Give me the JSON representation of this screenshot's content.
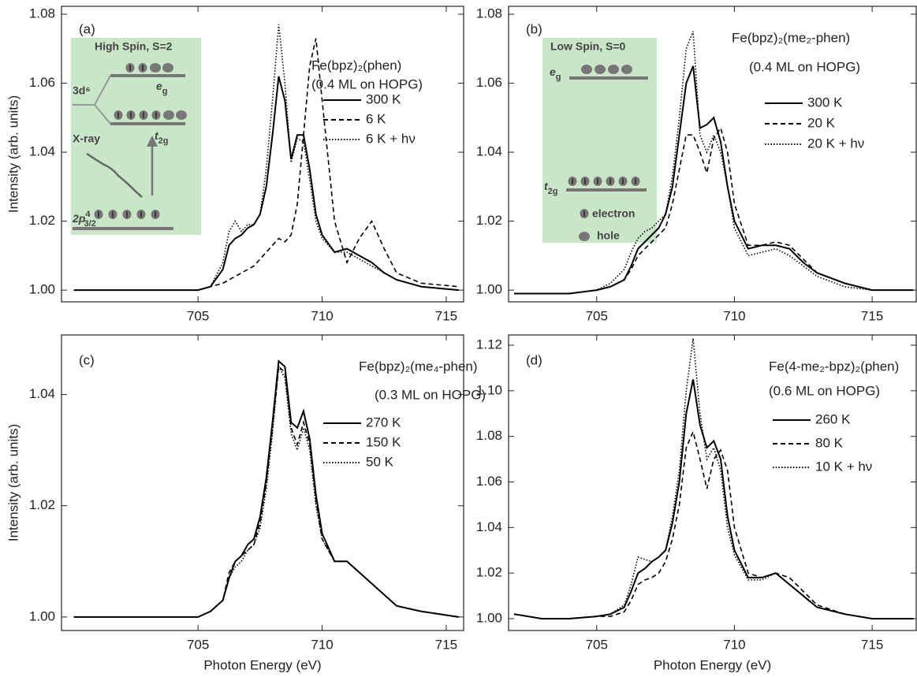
{
  "chart_data": [
    {
      "type": "line",
      "panel": "(a)",
      "title": "Fe(bpz)₂(phen)",
      "subtitle": "(0.4 ML on  HOPG)",
      "ylabel": "Intensity (arb. units)",
      "x": [
        700,
        702,
        704,
        705,
        705.5,
        706,
        706.25,
        706.5,
        706.75,
        707,
        707.25,
        707.5,
        707.75,
        708,
        708.25,
        708.5,
        708.75,
        709,
        709.25,
        709.5,
        709.75,
        710,
        710.5,
        711,
        711.5,
        712,
        712.5,
        713,
        714,
        715.5
      ],
      "xlim": [
        699.5,
        715.7
      ],
      "xticks": [
        705,
        710,
        715
      ],
      "ylim": [
        0.9966,
        1.0823
      ],
      "yticks": [
        {
          "value": 1,
          "label": "1.00"
        },
        {
          "value": 1.02,
          "label": "1.02"
        },
        {
          "value": 1.04,
          "label": "1.04"
        },
        {
          "value": 1.06,
          "label": "1.06"
        },
        {
          "value": 1.08,
          "label": "1.08"
        }
      ],
      "series": [
        {
          "name": "300 K",
          "color": "#000000",
          "dash": "solid",
          "values": [
            1.0,
            1.0,
            1.0,
            1.0,
            1.001,
            1.006,
            1.013,
            1.015,
            1.016,
            1.018,
            1.019,
            1.022,
            1.03,
            1.045,
            1.062,
            1.055,
            1.038,
            1.045,
            1.045,
            1.035,
            1.022,
            1.016,
            1.011,
            1.012,
            1.01,
            1.008,
            1.005,
            1.003,
            1.001,
            1.0
          ]
        },
        {
          "name": "6 K",
          "color": "#000000",
          "dash": "dashed",
          "values": [
            1.0,
            1.0,
            1.0,
            1.0,
            1.001,
            1.002,
            1.003,
            1.004,
            1.005,
            1.006,
            1.007,
            1.009,
            1.011,
            1.013,
            1.015,
            1.014,
            1.016,
            1.025,
            1.045,
            1.065,
            1.073,
            1.055,
            1.02,
            1.008,
            1.015,
            1.02,
            1.012,
            1.005,
            1.002,
            1.001
          ]
        },
        {
          "name": "6 K + hν",
          "color": "#000000",
          "dash": "dotted",
          "values": [
            1.0,
            1.0,
            1.0,
            1.0,
            1.001,
            1.008,
            1.017,
            1.02,
            1.017,
            1.019,
            1.019,
            1.022,
            1.035,
            1.055,
            1.077,
            1.06,
            1.037,
            1.044,
            1.043,
            1.032,
            1.02,
            1.015,
            1.011,
            1.011,
            1.009,
            1.007,
            1.005,
            1.003,
            1.001,
            1.0
          ]
        }
      ],
      "inset": {
        "title": "High Spin, S=2",
        "labels": [
          "3d⁶",
          {
            "text": "e",
            "sub": "g"
          },
          {
            "text": "t",
            "sub": "2g"
          },
          "X-ray",
          {
            "text": "2p",
            "sup": "4",
            "sub": "3/2"
          }
        ]
      }
    },
    {
      "type": "line",
      "panel": "(b)",
      "title": "Fe(bpz)₂(me₂-phen)",
      "subtitle": "(0.4 ML on HOPG)",
      "x": [
        702,
        703,
        704,
        705,
        705.5,
        706,
        706.25,
        706.5,
        706.75,
        707,
        707.25,
        707.5,
        707.75,
        708,
        708.25,
        708.5,
        708.75,
        709,
        709.25,
        709.5,
        709.75,
        710,
        710.5,
        711,
        711.5,
        712,
        712.5,
        713,
        714,
        715,
        716.5
      ],
      "xlim": [
        701.8,
        716.6
      ],
      "xticks": [
        705,
        710,
        715
      ],
      "ylim": [
        0.9966,
        1.0823
      ],
      "yticks": [
        {
          "value": 1,
          "label": "1.00"
        },
        {
          "value": 1.02,
          "label": "1.02"
        },
        {
          "value": 1.04,
          "label": "1.04"
        },
        {
          "value": 1.06,
          "label": "1.06"
        },
        {
          "value": 1.08,
          "label": "1.08"
        }
      ],
      "series": [
        {
          "name": "300 K",
          "color": "#000000",
          "dash": "solid",
          "values": [
            0.999,
            0.999,
            0.999,
            1.0,
            1.001,
            1.003,
            1.007,
            1.012,
            1.014,
            1.016,
            1.018,
            1.022,
            1.03,
            1.045,
            1.06,
            1.065,
            1.047,
            1.048,
            1.05,
            1.043,
            1.03,
            1.02,
            1.012,
            1.013,
            1.013,
            1.012,
            1.008,
            1.005,
            1.002,
            1.0,
            1.0
          ]
        },
        {
          "name": "20 K",
          "color": "#000000",
          "dash": "dashed",
          "values": [
            0.999,
            0.999,
            0.999,
            1.0,
            1.001,
            1.003,
            1.006,
            1.01,
            1.012,
            1.014,
            1.016,
            1.018,
            1.025,
            1.035,
            1.045,
            1.045,
            1.04,
            1.034,
            1.044,
            1.047,
            1.04,
            1.025,
            1.013,
            1.013,
            1.014,
            1.013,
            1.009,
            1.005,
            1.002,
            1.0,
            1.0
          ]
        },
        {
          "name": "20 K + hν",
          "color": "#000000",
          "dash": "dotted",
          "values": [
            0.999,
            0.999,
            0.999,
            1.0,
            1.002,
            1.006,
            1.011,
            1.015,
            1.017,
            1.018,
            1.02,
            1.022,
            1.033,
            1.05,
            1.07,
            1.075,
            1.045,
            1.04,
            1.045,
            1.04,
            1.03,
            1.018,
            1.01,
            1.011,
            1.012,
            1.01,
            1.007,
            1.004,
            1.001,
            1.0,
            1.0
          ]
        }
      ],
      "inset": {
        "title": "Low Spin, S=0",
        "labels": [
          {
            "text": "e",
            "sub": "g"
          },
          {
            "text": "t",
            "sub": "2g"
          },
          "electron",
          "hole"
        ]
      }
    },
    {
      "type": "line",
      "panel": "(c)",
      "title": "Fe(bpz)₂(me₄-phen)",
      "subtitle": "(0.3 ML on HOPG)",
      "ylabel": "Intensity (arb. units)",
      "xlabel": "Photon Energy (eV)",
      "x": [
        700,
        702,
        704,
        705,
        705.5,
        706,
        706.25,
        706.5,
        706.75,
        707,
        707.25,
        707.5,
        707.75,
        708,
        708.25,
        708.5,
        708.75,
        709,
        709.25,
        709.5,
        709.75,
        710,
        710.5,
        711,
        711.5,
        712,
        712.5,
        713,
        714,
        715.5
      ],
      "xlim": [
        699.5,
        715.7
      ],
      "xticks": [
        705,
        710,
        715
      ],
      "ylim": [
        0.99757,
        1.0507
      ],
      "yticks": [
        {
          "value": 1,
          "label": "1.00"
        },
        {
          "value": 1.02,
          "label": "1.02"
        },
        {
          "value": 1.04,
          "label": "1.04"
        }
      ],
      "series": [
        {
          "name": "270 K",
          "color": "#000000",
          "dash": "solid",
          "values": [
            1.0,
            1.0,
            1.0,
            1.0,
            1.001,
            1.003,
            1.007,
            1.01,
            1.011,
            1.013,
            1.014,
            1.018,
            1.025,
            1.035,
            1.046,
            1.045,
            1.035,
            1.034,
            1.037,
            1.032,
            1.022,
            1.015,
            1.01,
            1.01,
            1.008,
            1.006,
            1.004,
            1.002,
            1.001,
            1.0
          ]
        },
        {
          "name": "150 K",
          "color": "#000000",
          "dash": "dashed",
          "values": [
            1.0,
            1.0,
            1.0,
            1.0,
            1.001,
            1.003,
            1.008,
            1.01,
            1.011,
            1.012,
            1.013,
            1.017,
            1.024,
            1.034,
            1.045,
            1.044,
            1.034,
            1.031,
            1.035,
            1.031,
            1.021,
            1.014,
            1.01,
            1.01,
            1.008,
            1.006,
            1.004,
            1.002,
            1.001,
            1.0
          ]
        },
        {
          "name": "50 K",
          "color": "#000000",
          "dash": "dotted",
          "values": [
            1.0,
            1.0,
            1.0,
            1.0,
            1.001,
            1.003,
            1.007,
            1.009,
            1.01,
            1.012,
            1.013,
            1.016,
            1.023,
            1.033,
            1.045,
            1.043,
            1.033,
            1.03,
            1.034,
            1.03,
            1.02,
            1.014,
            1.01,
            1.01,
            1.008,
            1.006,
            1.004,
            1.002,
            1.001,
            1.0
          ]
        }
      ]
    },
    {
      "type": "line",
      "panel": "(d)",
      "title": "Fe(4-me₂-bpz)₂(phen)",
      "subtitle": "(0.6 ML on  HOPG)",
      "xlabel": "Photon Energy (eV)",
      "x": [
        702,
        703,
        704,
        705,
        705.5,
        706,
        706.25,
        706.5,
        706.75,
        707,
        707.25,
        707.5,
        707.75,
        708,
        708.25,
        708.5,
        708.75,
        709,
        709.25,
        709.5,
        709.75,
        710,
        710.5,
        711,
        711.5,
        712,
        712.5,
        713,
        714,
        715,
        716.5
      ],
      "xlim": [
        701.8,
        716.6
      ],
      "xticks": [
        705,
        710,
        715
      ],
      "ylim": [
        0.9948,
        1.1245
      ],
      "yticks": [
        {
          "value": 1,
          "label": "1.00"
        },
        {
          "value": 1.02,
          "label": "1.02"
        },
        {
          "value": 1.04,
          "label": "1.04"
        },
        {
          "value": 1.06,
          "label": "1.06"
        },
        {
          "value": 1.08,
          "label": "1.08"
        },
        {
          "value": 1.1,
          "label": "1.10"
        },
        {
          "value": 1.12,
          "label": "1.12"
        }
      ],
      "series": [
        {
          "name": "260 K",
          "color": "#000000",
          "dash": "solid",
          "values": [
            1.002,
            1.0,
            1.0,
            1.001,
            1.002,
            1.005,
            1.012,
            1.02,
            1.022,
            1.025,
            1.027,
            1.03,
            1.042,
            1.06,
            1.09,
            1.105,
            1.085,
            1.075,
            1.078,
            1.07,
            1.045,
            1.03,
            1.018,
            1.018,
            1.02,
            1.015,
            1.01,
            1.005,
            1.002,
            1.0,
            1.0
          ]
        },
        {
          "name": "80 K",
          "color": "#000000",
          "dash": "dashed",
          "values": [
            1.002,
            1.0,
            1.0,
            1.001,
            1.001,
            1.003,
            1.008,
            1.015,
            1.017,
            1.018,
            1.02,
            1.025,
            1.035,
            1.05,
            1.075,
            1.082,
            1.07,
            1.057,
            1.07,
            1.074,
            1.065,
            1.04,
            1.02,
            1.018,
            1.02,
            1.018,
            1.012,
            1.006,
            1.002,
            1.0,
            1.0
          ]
        },
        {
          "name": "10 K + hν",
          "color": "#000000",
          "dash": "dotted",
          "values": [
            1.002,
            1.0,
            1.0,
            1.001,
            1.002,
            1.006,
            1.015,
            1.027,
            1.026,
            1.025,
            1.027,
            1.03,
            1.045,
            1.065,
            1.1,
            1.123,
            1.09,
            1.07,
            1.075,
            1.065,
            1.04,
            1.028,
            1.017,
            1.017,
            1.02,
            1.015,
            1.01,
            1.005,
            1.002,
            1.0,
            1.0
          ]
        }
      ]
    }
  ]
}
